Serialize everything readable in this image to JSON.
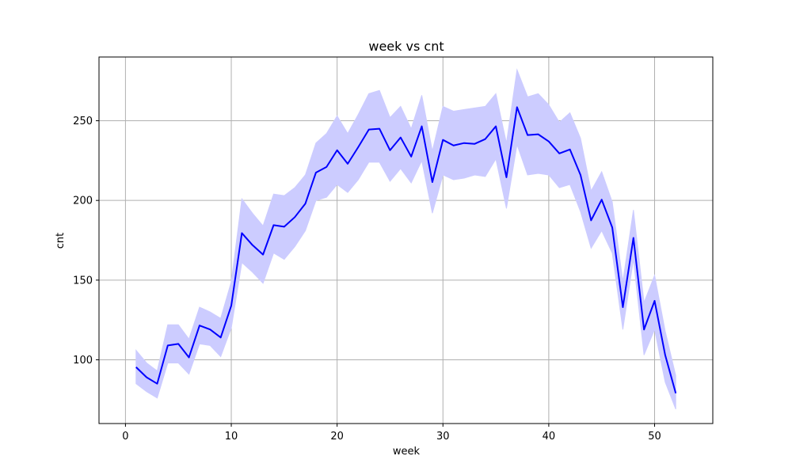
{
  "chart_data": {
    "type": "line",
    "title": "week vs cnt",
    "xlabel": "week",
    "ylabel": "cnt",
    "xlim": [
      -2.5,
      55.5
    ],
    "ylim": [
      60,
      290
    ],
    "xticks": [
      0,
      10,
      20,
      30,
      40,
      50
    ],
    "yticks": [
      100,
      150,
      200,
      250
    ],
    "grid": true,
    "series": [
      {
        "color": "#0000ff",
        "band_color": "#ccccff",
        "x": [
          1,
          2,
          3,
          4,
          5,
          6,
          7,
          8,
          9,
          10,
          11,
          12,
          13,
          14,
          15,
          16,
          17,
          18,
          19,
          20,
          21,
          22,
          23,
          24,
          25,
          26,
          27,
          28,
          29,
          30,
          31,
          32,
          33,
          34,
          35,
          36,
          37,
          38,
          39,
          40,
          41,
          42,
          43,
          44,
          45,
          46,
          47,
          48,
          49,
          50,
          51,
          52
        ],
        "y": [
          95.4,
          89,
          85,
          109,
          110,
          101.5,
          121.5,
          119,
          114,
          134,
          179.5,
          172,
          166,
          184.5,
          183.5,
          189.5,
          198,
          217.5,
          221,
          231.5,
          223,
          233.5,
          244.5,
          245,
          231.5,
          239.5,
          227.5,
          246.5,
          211.5,
          238,
          234.5,
          236,
          235.5,
          238.5,
          246.5,
          214.5,
          258.5,
          241,
          241.5,
          237,
          229.5,
          232,
          216,
          187.5,
          200.5,
          183,
          133,
          176.5,
          119,
          137,
          103,
          79
        ],
        "lower": [
          85,
          80,
          76,
          98,
          98,
          91,
          110,
          109,
          102,
          120,
          161,
          155,
          148,
          167,
          163,
          171,
          181,
          200,
          202,
          210,
          205,
          213,
          224,
          224,
          212,
          220,
          211,
          225,
          192,
          216,
          213,
          214,
          216,
          215,
          226,
          195,
          235,
          216,
          217,
          216,
          208,
          210,
          193,
          170,
          181,
          167,
          119,
          163,
          103,
          119,
          86,
          69
        ],
        "upper": [
          106,
          98,
          93,
          122,
          122,
          113,
          133,
          130,
          126,
          149,
          201,
          192,
          184,
          204,
          203,
          208,
          216,
          236,
          242,
          253,
          242,
          254,
          267,
          269,
          252,
          259,
          245,
          266,
          231,
          259,
          256,
          257,
          258,
          259,
          267,
          236,
          282,
          265,
          267,
          260,
          249,
          255,
          239,
          206,
          218,
          199,
          149,
          194,
          136,
          153,
          118,
          90
        ]
      }
    ]
  }
}
